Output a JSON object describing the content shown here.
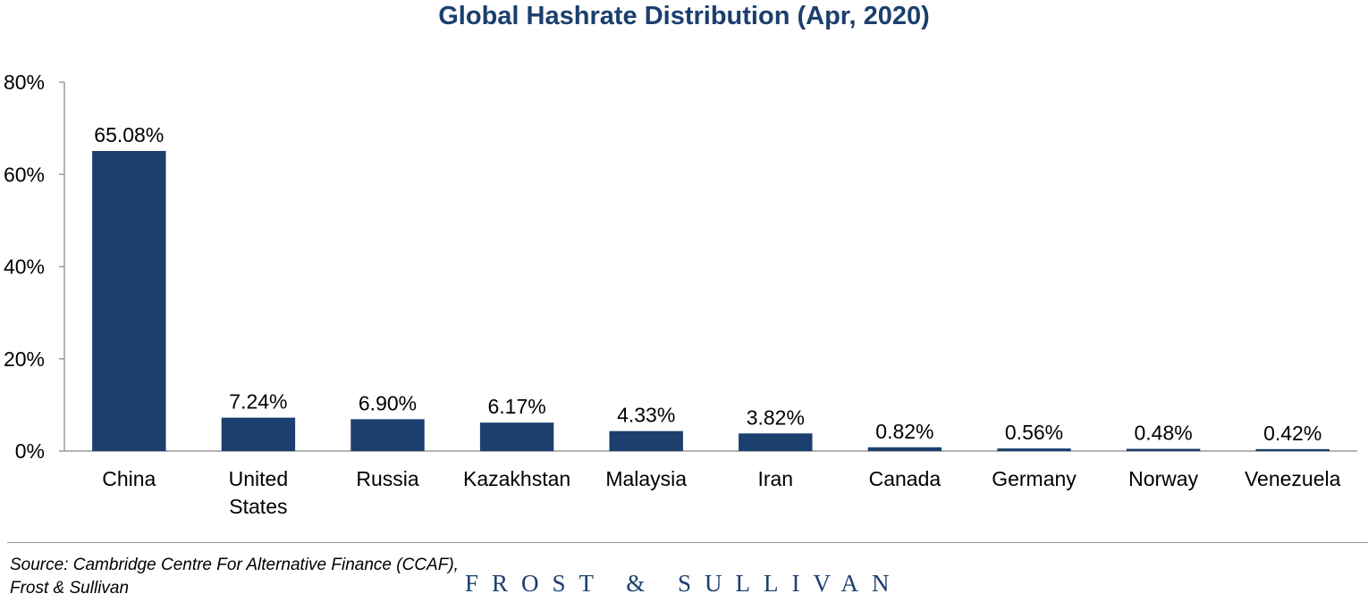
{
  "chart_data": {
    "type": "bar",
    "title": "Global Hashrate Distribution (Apr, 2020)",
    "categories": [
      "China",
      "United States",
      "Russia",
      "Kazakhstan",
      "Malaysia",
      "Iran",
      "Canada",
      "Germany",
      "Norway",
      "Venezuela"
    ],
    "category_lines": [
      [
        "China"
      ],
      [
        "United",
        "States"
      ],
      [
        "Russia"
      ],
      [
        "Kazakhstan"
      ],
      [
        "Malaysia"
      ],
      [
        "Iran"
      ],
      [
        "Canada"
      ],
      [
        "Germany"
      ],
      [
        "Norway"
      ],
      [
        "Venezuela"
      ]
    ],
    "values": [
      65.08,
      7.24,
      6.9,
      6.17,
      4.33,
      3.82,
      0.82,
      0.56,
      0.48,
      0.42
    ],
    "data_labels": [
      "65.08%",
      "7.24%",
      "6.90%",
      "6.17%",
      "4.33%",
      "3.82%",
      "0.82%",
      "0.56%",
      "0.48%",
      "0.42%"
    ],
    "ylim": [
      0,
      80
    ],
    "yticks": [
      0,
      20,
      40,
      60,
      80
    ],
    "ytick_labels": [
      "0%",
      "20%",
      "40%",
      "60%",
      "80%"
    ],
    "xlabel": "",
    "ylabel": "",
    "grid": false,
    "bar_color": "#1b3f6e"
  },
  "footer": {
    "source_line1": "Source: Cambridge Centre For Alternative Finance (CCAF),",
    "source_line2": "Frost & Sullivan",
    "logo_text": "FROST & SULLIVAN"
  }
}
